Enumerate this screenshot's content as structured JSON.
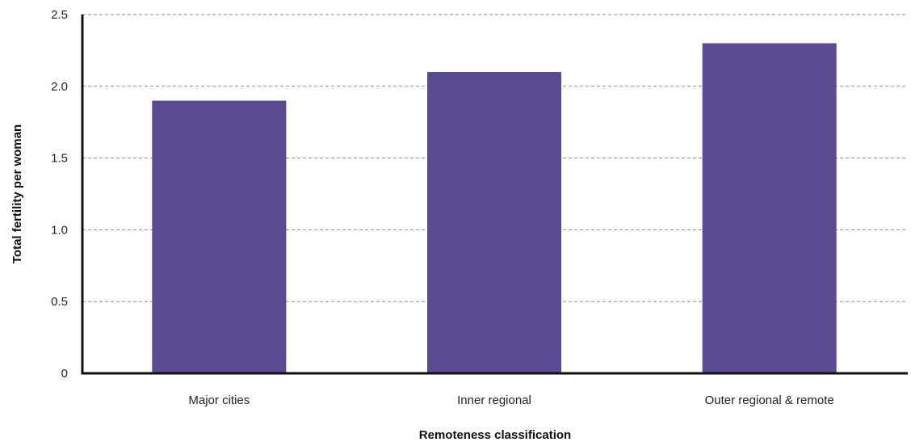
{
  "chart_data": {
    "type": "bar",
    "categories": [
      "Major cities",
      "Inner regional",
      "Outer regional & remote"
    ],
    "values": [
      1.9,
      2.1,
      2.3
    ],
    "title": "",
    "xlabel": "Remoteness classification",
    "ylabel": "Total fertility per woman",
    "ylim": [
      0,
      2.5
    ],
    "yticks": [
      0,
      0.5,
      1.0,
      1.5,
      2.0,
      2.5
    ],
    "ytick_labels": [
      "0",
      "0.5",
      "1.0",
      "1.5",
      "2.0",
      "2.5"
    ],
    "grid": true,
    "legend": "none",
    "bar_color": "#5a4a91",
    "axis_color": "#111111",
    "grid_color": "#8a8a8a"
  }
}
